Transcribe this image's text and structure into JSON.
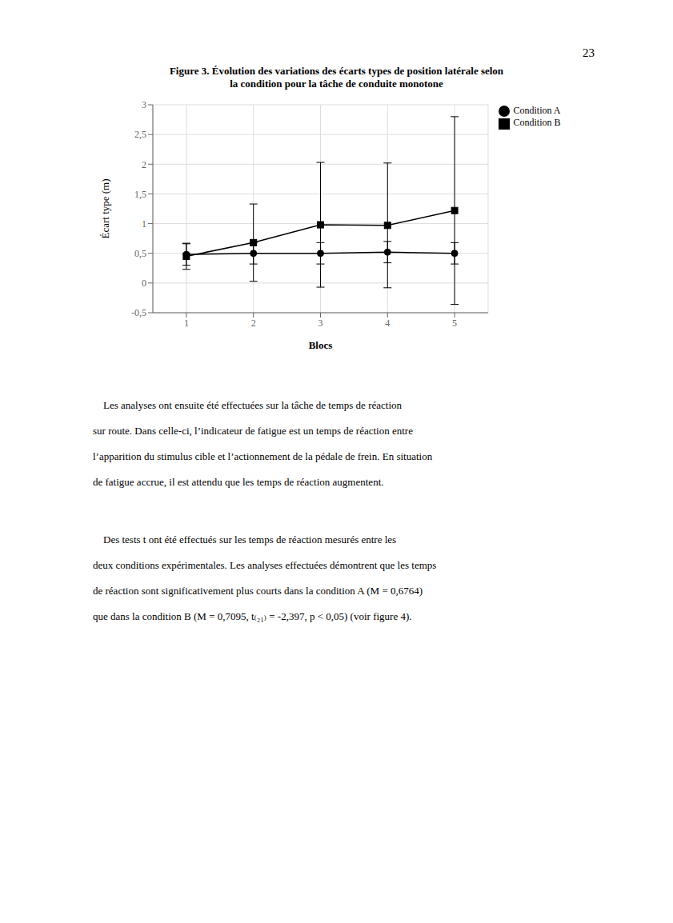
{
  "chart_data": {
    "type": "line",
    "title": [
      "Figure 3. Évolution des variations des écarts types de position latérale selon",
      "la condition pour la tâche de conduite monotone"
    ],
    "x_label": "Blocs",
    "y_label": "Écart type (m)",
    "x": [
      1,
      2,
      3,
      4,
      5
    ],
    "xlim": [
      0.5,
      5.5
    ],
    "xticks": [
      1,
      2,
      3,
      4,
      5
    ],
    "ylim": [
      -0.5,
      3
    ],
    "yticks": [
      {
        "value": -0.5,
        "label": "-0,5"
      },
      0,
      {
        "value": 0.5,
        "label": "0,5"
      },
      1,
      {
        "value": 1.5,
        "label": "1,5"
      },
      2,
      {
        "value": 2.5,
        "label": "2,5"
      },
      3
    ],
    "grid": true,
    "legend": "right",
    "series": [
      {
        "name": "Condition A",
        "color": "#000000",
        "marker": "circle",
        "values": [
          0.48,
          0.5,
          0.5,
          0.52,
          0.5
        ],
        "errors": [
          0.18,
          0.18,
          0.18,
          0.18,
          0.18
        ]
      },
      {
        "name": "Condition B",
        "color": "#000000",
        "marker": "square",
        "values": [
          0.45,
          0.68,
          0.98,
          0.97,
          1.22
        ],
        "errors": [
          0.22,
          0.65,
          1.05,
          1.05,
          1.58
        ]
      }
    ],
    "annotations": {
      "page_number": "23",
      "paragraphs": [
        [
          "    Les analyses ont ensuite été effectuées sur la tâche de temps de réaction",
          "sur route. Dans celle-ci, l’indicateur de fatigue est un temps de réaction entre",
          "l’apparition du stimulus cible et l’actionnement de la pédale de frein. En situation",
          "de fatigue accrue, il est attendu que les temps de réaction augmentent."
        ],
        [
          "    Des tests t ont été effectués sur les temps de réaction mesurés entre les",
          "deux conditions expérimentales. Les analyses effectuées démontrent que les temps",
          "de réaction sont significativement plus courts dans la condition A (M = 0,6764)",
          "que dans la condition B (M = 0,7095, t₍₂₁₎ = -2,397, p < 0,05) (voir figure 4)."
        ]
      ]
    }
  }
}
